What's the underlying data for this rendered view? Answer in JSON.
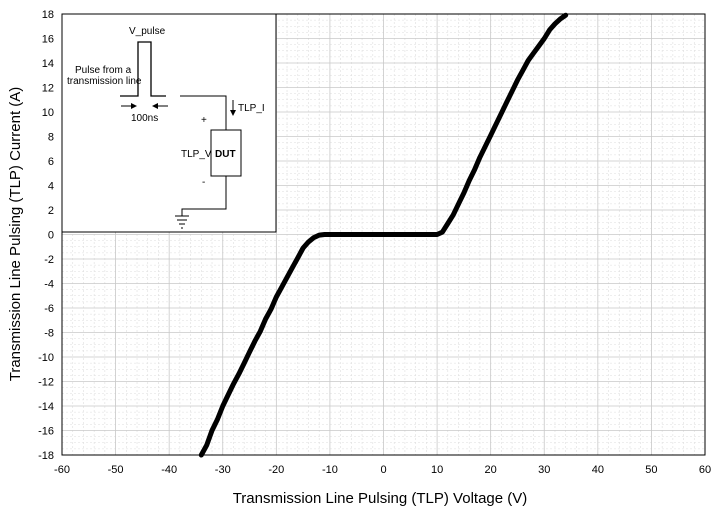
{
  "chart_data": {
    "type": "line",
    "xlabel": "Transmission Line Pulsing (TLP) Voltage (V)",
    "ylabel": "Transmission Line Pulsing (TLP) Current (A)",
    "xlim": [
      -60,
      60
    ],
    "ylim": [
      -18,
      18
    ],
    "x_ticks": [
      -60,
      -50,
      -40,
      -30,
      -20,
      -10,
      0,
      10,
      20,
      30,
      40,
      50,
      60
    ],
    "y_ticks": [
      -18,
      -16,
      -14,
      -12,
      -10,
      -8,
      -6,
      -4,
      -2,
      0,
      2,
      4,
      6,
      8,
      10,
      12,
      14,
      16,
      18
    ],
    "grid": true,
    "minor_grid": true,
    "series": [
      {
        "x": [
          -34,
          -33,
          -32,
          -31,
          -30,
          -29,
          -28,
          -27,
          -26,
          -25,
          -24,
          -23,
          -22,
          -21,
          -20,
          -19,
          -18,
          -17,
          -16,
          -15,
          -14,
          -13,
          -12,
          -11,
          -10,
          -5,
          0,
          5,
          10,
          11,
          12,
          13,
          14,
          15,
          16,
          17,
          18,
          19,
          20,
          21,
          22,
          23,
          24,
          25,
          26,
          27,
          28,
          29,
          30,
          31,
          32,
          33,
          34
        ],
        "y": [
          -18,
          -17.2,
          -16,
          -15.1,
          -14,
          -13.1,
          -12.2,
          -11.4,
          -10.5,
          -9.6,
          -8.7,
          -7.9,
          -6.9,
          -6.1,
          -5.1,
          -4.3,
          -3.5,
          -2.7,
          -1.9,
          -1.1,
          -0.6,
          -0.25,
          -0.05,
          0,
          0,
          0,
          0,
          0,
          0,
          0.2,
          0.9,
          1.6,
          2.5,
          3.4,
          4.4,
          5.3,
          6.3,
          7.2,
          8.1,
          9,
          9.9,
          10.8,
          11.7,
          12.6,
          13.4,
          14.2,
          14.8,
          15.4,
          16,
          16.7,
          17.2,
          17.6,
          17.9
        ]
      }
    ]
  },
  "inset": {
    "v_pulse_label": "V_pulse",
    "source_label_line1": "Pulse from a",
    "source_label_line2": "transmission  line",
    "width_label": "100ns",
    "plus_label": "+",
    "minus_label": "-",
    "current_label": "TLP_I",
    "voltage_label": "TLP_V",
    "dut_label": "DUT"
  },
  "colors": {
    "curve": "#000000",
    "major_grid": "#c8c8c8",
    "minor_grid": "#dedede",
    "background": "#ffffff"
  }
}
